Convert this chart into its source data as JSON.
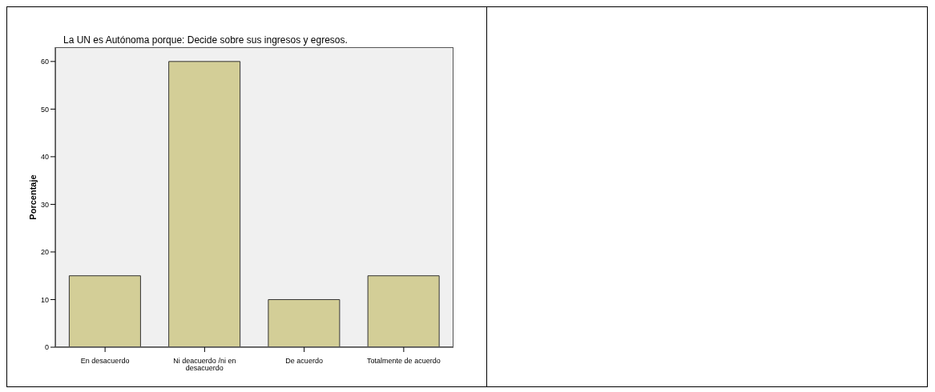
{
  "chart_data": {
    "type": "bar",
    "title": "La UN es Autónoma porque: Decide sobre sus ingresos y egresos.",
    "ylabel": "Porcentaje",
    "categories": [
      "En desacuerdo",
      "Ni deacuerdo /ni en desacuerdo",
      "De acuerdo",
      "Totalmente de acuerdo"
    ],
    "values": [
      15,
      60,
      10,
      15
    ],
    "color": "#d3ce97",
    "ylim": [
      0,
      63
    ],
    "yticks": [
      0,
      10,
      20,
      30,
      40,
      50,
      60
    ],
    "grid": false
  }
}
